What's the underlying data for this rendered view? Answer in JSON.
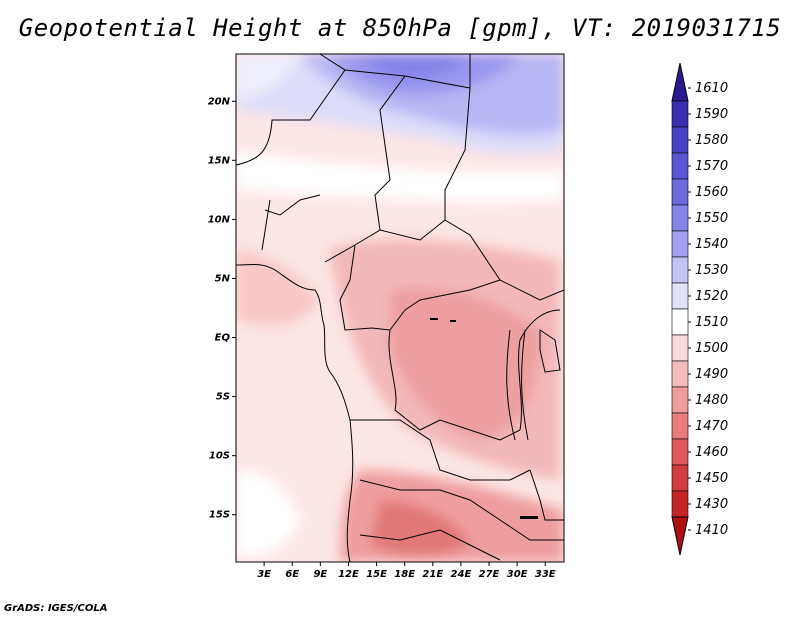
{
  "title": "Geopotential Height at 850hPa [gpm], VT: 2019031715",
  "credit": "GrADS: IGES/COLA",
  "map": {
    "lat_ticks": [
      "20N",
      "15N",
      "10N",
      "5N",
      "EQ",
      "5S",
      "10S",
      "15S"
    ],
    "lon_ticks": [
      "3E",
      "6E",
      "9E",
      "12E",
      "15E",
      "18E",
      "21E",
      "24E",
      "27E",
      "30E",
      "33E"
    ],
    "lat_range": [
      -19,
      24
    ],
    "lon_range": [
      0,
      35
    ]
  },
  "colorbar": {
    "levels": [
      "1610",
      "1590",
      "1580",
      "1570",
      "1560",
      "1550",
      "1540",
      "1530",
      "1520",
      "1510",
      "1500",
      "1490",
      "1480",
      "1470",
      "1460",
      "1450",
      "1430",
      "1410"
    ],
    "colors": [
      "#2a1a8f",
      "#3a2fb0",
      "#4a41c4",
      "#5a55d2",
      "#6e6ade",
      "#8783e8",
      "#a3a0f0",
      "#c4c3f5",
      "#e2e2fa",
      "#ffffff",
      "#fbdcdc",
      "#f6bcbc",
      "#f09c9c",
      "#e87b7b",
      "#de5a5a",
      "#d23d3d",
      "#c42525",
      "#b01010"
    ]
  }
}
